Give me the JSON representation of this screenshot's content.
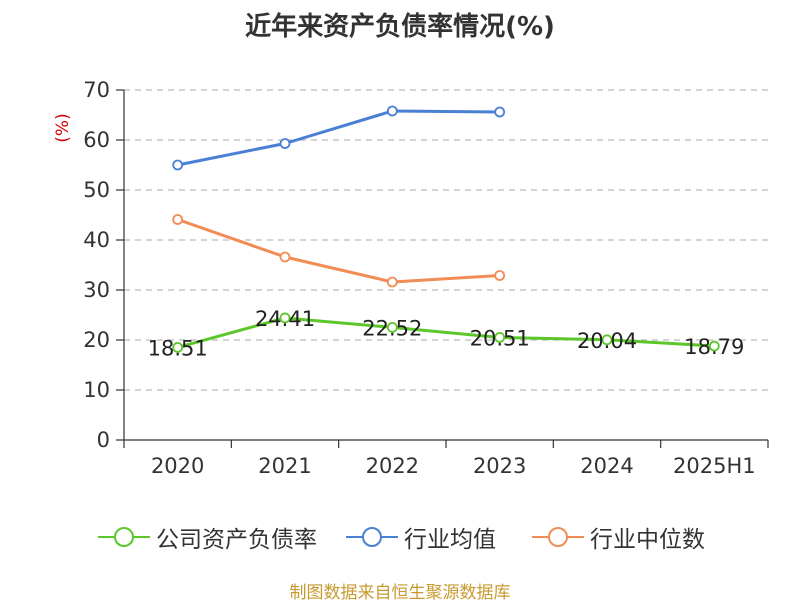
{
  "chart_data": {
    "type": "line",
    "title": "近年来资产负债率情况(%)",
    "ylabel": "(%)",
    "ylim": [
      0,
      70
    ],
    "yticks": [
      0,
      10,
      20,
      30,
      40,
      50,
      60,
      70
    ],
    "categories": [
      "2020",
      "2021",
      "2022",
      "2023",
      "2024",
      "2025H1"
    ],
    "grid": true,
    "legend_position": "bottom",
    "series": [
      {
        "name": "公司资产负债率",
        "color": "#5cc72a",
        "values": [
          18.51,
          24.41,
          22.52,
          20.51,
          20.04,
          18.79
        ],
        "labels": [
          "18.51",
          "24.41",
          "22.52",
          "20.51",
          "20.04",
          "18.79"
        ]
      },
      {
        "name": "行业均值",
        "color": "#4a7fd6",
        "values": [
          55.0,
          59.3,
          65.8,
          65.6,
          null,
          null
        ]
      },
      {
        "name": "行业中位数",
        "color": "#f28c55",
        "values": [
          44.1,
          36.6,
          31.6,
          32.9,
          null,
          null
        ]
      }
    ]
  },
  "source": "制图数据来自恒生聚源数据库"
}
